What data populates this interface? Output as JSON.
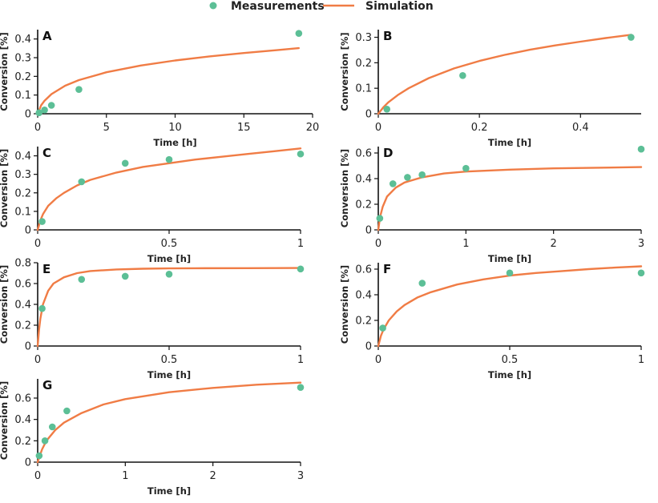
{
  "colors": {
    "measurement": "#5cbf96",
    "simulation": "#f07c45",
    "axis": "#111111"
  },
  "legend": {
    "measurements_label": "Measurements",
    "simulation_label": "Simulation"
  },
  "chart_data": [
    {
      "label": "A",
      "type": "scatter+line",
      "xlabel": "Time [h]",
      "ylabel": "Conversion [%]",
      "xlim": [
        0,
        20
      ],
      "ylim": [
        0,
        0.45
      ],
      "xticks": [
        0,
        5,
        10,
        15,
        20
      ],
      "yticks": [
        0,
        0.1,
        0.2,
        0.3,
        0.4
      ],
      "measurements": {
        "x": [
          0.1,
          0.5,
          1,
          3,
          19
        ],
        "y": [
          0.005,
          0.02,
          0.045,
          0.13,
          0.43
        ]
      },
      "simulation": {
        "x": [
          0,
          0.25,
          0.5,
          1,
          2,
          3,
          5,
          7.5,
          10,
          12.5,
          15,
          17.5,
          19
        ],
        "y": [
          0,
          0.045,
          0.07,
          0.105,
          0.15,
          0.18,
          0.222,
          0.258,
          0.285,
          0.307,
          0.325,
          0.341,
          0.351
        ]
      }
    },
    {
      "label": "B",
      "type": "scatter+line",
      "xlabel": "Time [h]",
      "ylabel": "Conversion [%]",
      "xlim": [
        0,
        0.52
      ],
      "ylim": [
        0,
        0.33
      ],
      "xticks": [
        0,
        0.2,
        0.4
      ],
      "yticks": [
        0,
        0.1,
        0.2,
        0.3
      ],
      "measurements": {
        "x": [
          0.017,
          0.167,
          0.5
        ],
        "y": [
          0.018,
          0.15,
          0.3
        ]
      },
      "simulation": {
        "x": [
          0,
          0.01,
          0.02,
          0.04,
          0.06,
          0.1,
          0.15,
          0.2,
          0.25,
          0.3,
          0.35,
          0.4,
          0.45,
          0.5
        ],
        "y": [
          0,
          0.025,
          0.045,
          0.075,
          0.1,
          0.14,
          0.178,
          0.207,
          0.231,
          0.251,
          0.268,
          0.283,
          0.297,
          0.31
        ]
      }
    },
    {
      "label": "C",
      "type": "scatter+line",
      "xlabel": "Time [h]",
      "ylabel": "Conversion [%]",
      "xlim": [
        0,
        1
      ],
      "ylim": [
        0,
        0.45
      ],
      "xticks": [
        0,
        0.5,
        1
      ],
      "yticks": [
        0,
        0.1,
        0.2,
        0.3,
        0.4
      ],
      "measurements": {
        "x": [
          0.017,
          0.167,
          0.333,
          0.5,
          1
        ],
        "y": [
          0.045,
          0.26,
          0.36,
          0.38,
          0.41
        ]
      },
      "simulation": {
        "x": [
          0,
          0.01,
          0.02,
          0.04,
          0.07,
          0.1,
          0.15,
          0.2,
          0.3,
          0.4,
          0.5,
          0.6,
          0.7,
          0.8,
          0.9,
          1
        ],
        "y": [
          0,
          0.05,
          0.085,
          0.13,
          0.17,
          0.2,
          0.24,
          0.27,
          0.31,
          0.34,
          0.36,
          0.38,
          0.395,
          0.41,
          0.425,
          0.44
        ]
      }
    },
    {
      "label": "D",
      "type": "scatter+line",
      "xlabel": "Time [h]",
      "ylabel": "Conversion [%]",
      "xlim": [
        0,
        3
      ],
      "ylim": [
        0,
        0.65
      ],
      "xticks": [
        0,
        1,
        2,
        3
      ],
      "yticks": [
        0,
        0.2,
        0.4,
        0.6
      ],
      "measurements": {
        "x": [
          0.017,
          0.167,
          0.333,
          0.5,
          1,
          3
        ],
        "y": [
          0.09,
          0.36,
          0.41,
          0.43,
          0.48,
          0.63
        ]
      },
      "simulation": {
        "x": [
          0,
          0.02,
          0.05,
          0.1,
          0.2,
          0.3,
          0.5,
          0.75,
          1,
          1.5,
          2,
          2.5,
          3
        ],
        "y": [
          0,
          0.1,
          0.18,
          0.26,
          0.33,
          0.37,
          0.41,
          0.44,
          0.455,
          0.47,
          0.48,
          0.485,
          0.49
        ]
      }
    },
    {
      "label": "E",
      "type": "scatter+line",
      "xlabel": "Time [h]",
      "ylabel": "Conversion [%]",
      "xlim": [
        0,
        1
      ],
      "ylim": [
        0,
        0.8
      ],
      "xticks": [
        0,
        0.5,
        1
      ],
      "yticks": [
        0,
        0.2,
        0.4,
        0.6,
        0.8
      ],
      "measurements": {
        "x": [
          0.017,
          0.167,
          0.333,
          0.5,
          1
        ],
        "y": [
          0.36,
          0.64,
          0.67,
          0.69,
          0.74
        ]
      },
      "simulation": {
        "x": [
          0,
          0.005,
          0.01,
          0.02,
          0.04,
          0.06,
          0.1,
          0.15,
          0.2,
          0.3,
          0.4,
          0.5,
          0.6,
          0.8,
          1
        ],
        "y": [
          0,
          0.15,
          0.26,
          0.4,
          0.53,
          0.6,
          0.66,
          0.7,
          0.72,
          0.735,
          0.742,
          0.745,
          0.747,
          0.748,
          0.749
        ]
      }
    },
    {
      "label": "F",
      "type": "scatter+line",
      "xlabel": "Time [h]",
      "ylabel": "Conversion [%]",
      "xlim": [
        0,
        1
      ],
      "ylim": [
        0,
        0.65
      ],
      "xticks": [
        0,
        0.5,
        1
      ],
      "yticks": [
        0,
        0.2,
        0.4,
        0.6
      ],
      "measurements": {
        "x": [
          0.017,
          0.167,
          0.5,
          1
        ],
        "y": [
          0.14,
          0.49,
          0.57,
          0.57
        ]
      },
      "simulation": {
        "x": [
          0,
          0.01,
          0.02,
          0.04,
          0.07,
          0.1,
          0.15,
          0.2,
          0.3,
          0.4,
          0.5,
          0.6,
          0.7,
          0.8,
          0.9,
          1
        ],
        "y": [
          0,
          0.08,
          0.13,
          0.2,
          0.27,
          0.32,
          0.38,
          0.42,
          0.48,
          0.52,
          0.55,
          0.57,
          0.585,
          0.6,
          0.612,
          0.622
        ]
      }
    },
    {
      "label": "G",
      "type": "scatter+line",
      "xlabel": "Time [h]",
      "ylabel": "Conversion [%]",
      "xlim": [
        0,
        3
      ],
      "ylim": [
        0,
        0.78
      ],
      "xticks": [
        0,
        1,
        2,
        3
      ],
      "yticks": [
        0,
        0.2,
        0.4,
        0.6
      ],
      "measurements": {
        "x": [
          0.017,
          0.083,
          0.167,
          0.333,
          3
        ],
        "y": [
          0.06,
          0.2,
          0.33,
          0.48,
          0.7
        ]
      },
      "simulation": {
        "x": [
          0,
          0.02,
          0.05,
          0.1,
          0.2,
          0.3,
          0.5,
          0.75,
          1,
          1.5,
          2,
          2.5,
          3
        ],
        "y": [
          0,
          0.05,
          0.12,
          0.2,
          0.3,
          0.37,
          0.46,
          0.54,
          0.59,
          0.655,
          0.695,
          0.725,
          0.745
        ]
      }
    }
  ]
}
